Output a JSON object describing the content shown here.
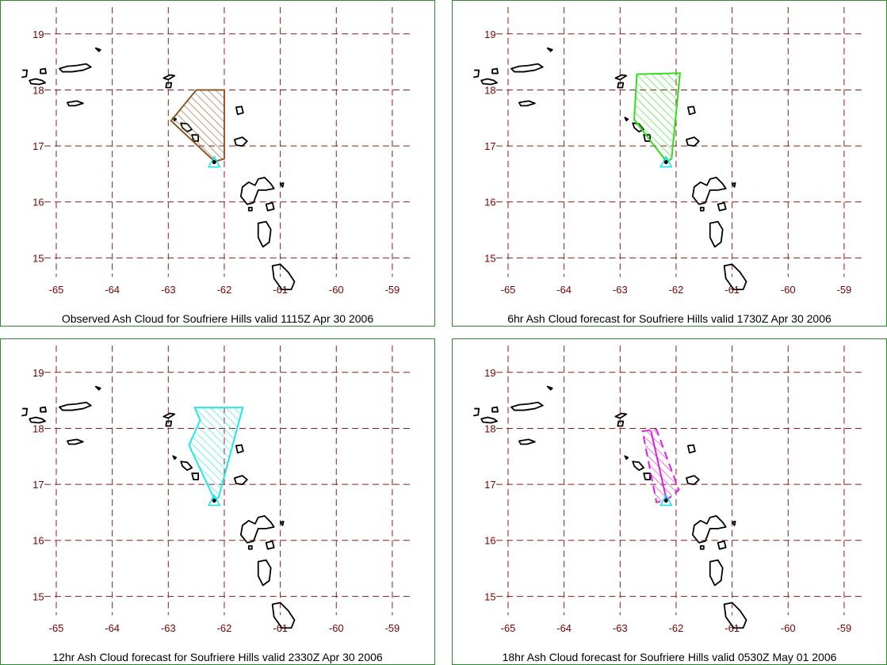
{
  "map": {
    "lat_labels": [
      "19",
      "18",
      "17",
      "16",
      "15"
    ],
    "lon_labels": [
      "-65",
      "-64",
      "-63",
      "-62",
      "-61",
      "-60",
      "-59"
    ],
    "grid_color": "#8b1a1a",
    "label_color": "#7a0000",
    "frame_color": "#2c8a2c"
  },
  "panels": [
    {
      "title": "Observed Ash Cloud for Soufriere  Hills valid 1115Z Apr 30 2006",
      "cloud_color": "#8b5a2b",
      "cloud_style": "polygon",
      "cloud_polygon": [
        [
          -62.5,
          18.0
        ],
        [
          -62.0,
          18.0
        ],
        [
          -62.0,
          16.77
        ],
        [
          -62.17,
          16.72
        ],
        [
          -62.95,
          17.45
        ]
      ]
    },
    {
      "title": "6hr Ash Cloud forecast for Soufriere  Hills valid 1730Z Apr 30 2006",
      "cloud_color": "#33dd22",
      "cloud_style": "polygon",
      "cloud_polygon": [
        [
          -62.7,
          18.28
        ],
        [
          -61.93,
          18.3
        ],
        [
          -62.08,
          16.77
        ],
        [
          -62.17,
          16.72
        ],
        [
          -62.75,
          17.47
        ]
      ]
    },
    {
      "title": "12hr Ash Cloud forecast for Soufriere  Hills valid 2330Z Apr 30 2006",
      "cloud_color": "#22e5e5",
      "cloud_style": "polygon",
      "cloud_polygon": [
        [
          -62.53,
          18.37
        ],
        [
          -61.67,
          18.37
        ],
        [
          -62.1,
          16.77
        ],
        [
          -62.17,
          16.72
        ],
        [
          -62.63,
          17.7
        ],
        [
          -62.43,
          18.15
        ]
      ]
    },
    {
      "title": "18hr Ash Cloud forecast for Soufriere  Hills valid 0530Z May 01 2006",
      "cloud_color": "#dd22dd",
      "cloud_style": "dashed-polygon",
      "cloud_polygon": [
        [
          -62.6,
          17.95
        ],
        [
          -62.35,
          17.98
        ],
        [
          -61.95,
          16.9
        ],
        [
          -62.17,
          16.72
        ],
        [
          -62.35,
          16.68
        ]
      ]
    }
  ]
}
